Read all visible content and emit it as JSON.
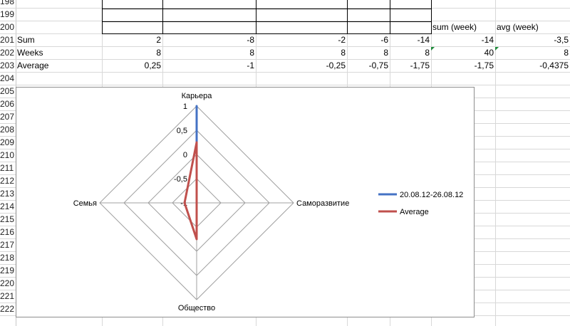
{
  "rows": [
    {
      "num": "198",
      "cells": []
    },
    {
      "num": "199",
      "cells": []
    },
    {
      "num": "200",
      "cells": [
        "",
        "",
        "",
        "",
        "",
        "",
        "sum (week)",
        "avg (week)"
      ]
    },
    {
      "num": "201",
      "label": "Sum",
      "cells": [
        "2",
        "-8",
        "-2",
        "-6",
        "-14",
        "-14",
        "-3,5"
      ]
    },
    {
      "num": "202",
      "label": "Weeks",
      "cells": [
        "8",
        "8",
        "8",
        "8",
        "8",
        "40",
        "8"
      ]
    },
    {
      "num": "203",
      "label": "Average",
      "cells": [
        "0,25",
        "-1",
        "-0,25",
        "-0,75",
        "-1,75",
        "-1,75",
        "-0,4375"
      ]
    },
    {
      "num": "204",
      "cells": []
    },
    {
      "num": "205",
      "cells": []
    },
    {
      "num": "206",
      "cells": []
    },
    {
      "num": "207",
      "cells": []
    },
    {
      "num": "208",
      "cells": []
    },
    {
      "num": "209",
      "cells": []
    },
    {
      "num": "210",
      "cells": []
    },
    {
      "num": "211",
      "cells": []
    },
    {
      "num": "212",
      "cells": []
    },
    {
      "num": "213",
      "cells": []
    },
    {
      "num": "214",
      "cells": []
    },
    {
      "num": "215",
      "cells": []
    },
    {
      "num": "216",
      "cells": []
    },
    {
      "num": "217",
      "cells": []
    },
    {
      "num": "218",
      "cells": []
    },
    {
      "num": "219",
      "cells": []
    },
    {
      "num": "220",
      "cells": []
    },
    {
      "num": "221",
      "cells": []
    },
    {
      "num": "222",
      "cells": []
    }
  ],
  "headers": {
    "sum_week": "sum (week)",
    "avg_week": "avg (week)"
  },
  "chart_data": {
    "type": "radar",
    "categories": [
      "Карьера",
      "Саморазвитие",
      "Общество",
      "Семья"
    ],
    "axis_ticks": [
      "1",
      "0,5",
      "0",
      "-0,5",
      "-1"
    ],
    "rlim": [
      -1,
      1
    ],
    "series": [
      {
        "name": "20.08.12-26.08.12",
        "values": [
          1,
          -1,
          -1,
          -1
        ],
        "color": "#4472c4"
      },
      {
        "name": "Average",
        "values": [
          0.25,
          -1,
          -0.25,
          -0.75
        ],
        "color": "#c0504d"
      }
    ],
    "legend_position": "right"
  }
}
